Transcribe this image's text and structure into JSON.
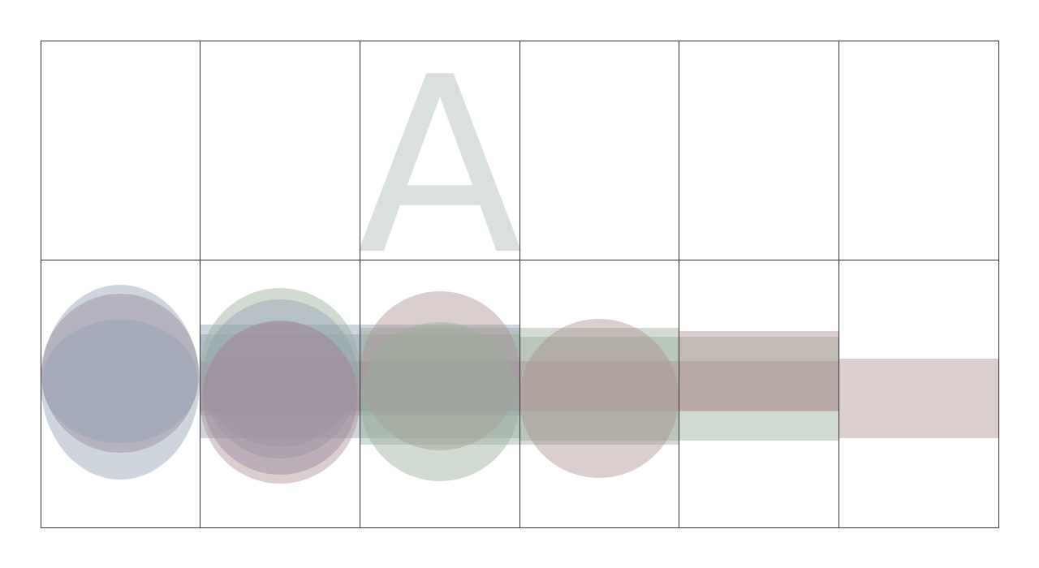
{
  "glyph": {
    "text": "A",
    "color": "#dadfdf"
  },
  "palette": {
    "slate": "#93a1b4",
    "mauve": "#9a8aa0",
    "sage": "#98b09b",
    "rose": "#ae9292",
    "grid": "#333333"
  },
  "grid": {
    "columns": 6,
    "rows": 2
  }
}
